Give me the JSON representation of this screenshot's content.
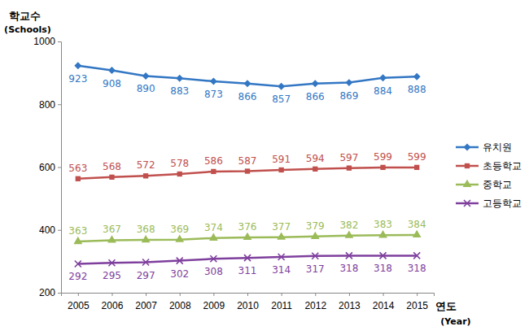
{
  "chart_data": {
    "type": "line",
    "ylabel": [
      "학교수",
      "(Schools)"
    ],
    "xlabel": [
      "연도",
      "(Year)"
    ],
    "categories": [
      "2005",
      "2006",
      "2007",
      "2008",
      "2009",
      "2010",
      "2011",
      "2012",
      "2013",
      "2014",
      "2015"
    ],
    "series": [
      {
        "name": "유치원",
        "color": "#3377c4",
        "marker": "diamond",
        "values": [
          923,
          908,
          890,
          883,
          873,
          866,
          857,
          866,
          869,
          884,
          888
        ]
      },
      {
        "name": "초등학교",
        "color": "#c0504d",
        "marker": "square",
        "values": [
          563,
          568,
          572,
          578,
          586,
          587,
          591,
          594,
          597,
          599,
          599
        ]
      },
      {
        "name": "중학교",
        "color": "#9bbb59",
        "marker": "triangle",
        "values": [
          363,
          367,
          368,
          369,
          374,
          376,
          377,
          379,
          382,
          383,
          384
        ]
      },
      {
        "name": "고등학교",
        "color": "#7e3f9d",
        "marker": "x",
        "values": [
          292,
          295,
          297,
          302,
          308,
          311,
          314,
          317,
          318,
          318,
          318
        ]
      }
    ],
    "ylim": [
      200,
      1000
    ],
    "yticks": [
      200,
      400,
      600,
      800,
      1000
    ],
    "grid": false,
    "legend": "right",
    "data_labels": true
  }
}
